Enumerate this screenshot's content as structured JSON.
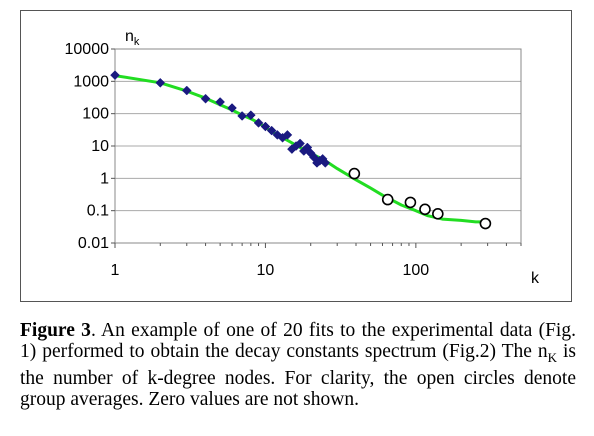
{
  "chart_data": {
    "type": "scatter",
    "title": "",
    "xlabel": "k",
    "ylabel": "n",
    "ylabel_sub": "k",
    "xscale": "log",
    "yscale": "log",
    "xlim": [
      1,
      500
    ],
    "ylim": [
      0.01,
      10000
    ],
    "x_ticks": [
      {
        "value": 1,
        "label": "1"
      },
      {
        "value": 10,
        "label": "10"
      },
      {
        "value": 100,
        "label": "100"
      }
    ],
    "y_ticks": [
      {
        "value": 0.01,
        "label": "0.01"
      },
      {
        "value": 0.1,
        "label": "0.1"
      },
      {
        "value": 1,
        "label": "1"
      },
      {
        "value": 10,
        "label": "10"
      },
      {
        "value": 100,
        "label": "100"
      },
      {
        "value": 1000,
        "label": "1000"
      },
      {
        "value": 10000,
        "label": "10000"
      }
    ],
    "grid": "horizontal",
    "legend": "none",
    "colors": {
      "fit": "#22dd22",
      "data": "#1a1a80",
      "averages": "#000000"
    },
    "series": [
      {
        "kind": "fit-line",
        "points": [
          [
            1,
            1500
          ],
          [
            2,
            900
          ],
          [
            3,
            500
          ],
          [
            4,
            300
          ],
          [
            5,
            190
          ],
          [
            6,
            130
          ],
          [
            7,
            90
          ],
          [
            8,
            70
          ],
          [
            9,
            52
          ],
          [
            10,
            38
          ],
          [
            12,
            22
          ],
          [
            14,
            15
          ],
          [
            17,
            9
          ],
          [
            20,
            6
          ],
          [
            25,
            3.5
          ],
          [
            30,
            2
          ],
          [
            40,
            0.9
          ],
          [
            50,
            0.5
          ],
          [
            60,
            0.3
          ],
          [
            80,
            0.15
          ],
          [
            100,
            0.1
          ],
          [
            120,
            0.07
          ],
          [
            150,
            0.055
          ],
          [
            200,
            0.05
          ],
          [
            250,
            0.045
          ],
          [
            300,
            0.045
          ]
        ]
      },
      {
        "kind": "diamond-markers",
        "points": [
          [
            1,
            1550
          ],
          [
            2,
            900
          ],
          [
            3,
            520
          ],
          [
            4,
            290
          ],
          [
            5,
            230
          ],
          [
            6,
            150
          ],
          [
            7,
            85
          ],
          [
            8,
            90
          ],
          [
            9,
            52
          ],
          [
            10,
            40
          ],
          [
            11,
            30
          ],
          [
            12,
            22
          ],
          [
            13,
            18
          ],
          [
            14,
            22
          ],
          [
            15,
            8
          ],
          [
            16,
            10
          ],
          [
            17,
            12
          ],
          [
            18,
            7
          ],
          [
            19,
            9
          ],
          [
            20,
            6
          ],
          [
            21,
            4.5
          ],
          [
            22,
            3
          ],
          [
            23,
            3.5
          ],
          [
            24,
            4
          ],
          [
            25,
            3
          ]
        ]
      },
      {
        "kind": "open-circles",
        "points": [
          [
            39,
            1.4
          ],
          [
            65,
            0.22
          ],
          [
            92,
            0.18
          ],
          [
            115,
            0.11
          ],
          [
            140,
            0.08
          ],
          [
            290,
            0.04
          ]
        ]
      }
    ]
  },
  "caption": {
    "figure_label": "Figure 3",
    "text": ". An example of one of 20 fits to the experimental data (Fig. 1) performed to obtain the decay constants spectrum (Fig.2) The n",
    "subscript": "K",
    "text_after": " is the number of k-degree nodes. For clarity, the open circles denote group averages.  Zero values are not shown."
  }
}
